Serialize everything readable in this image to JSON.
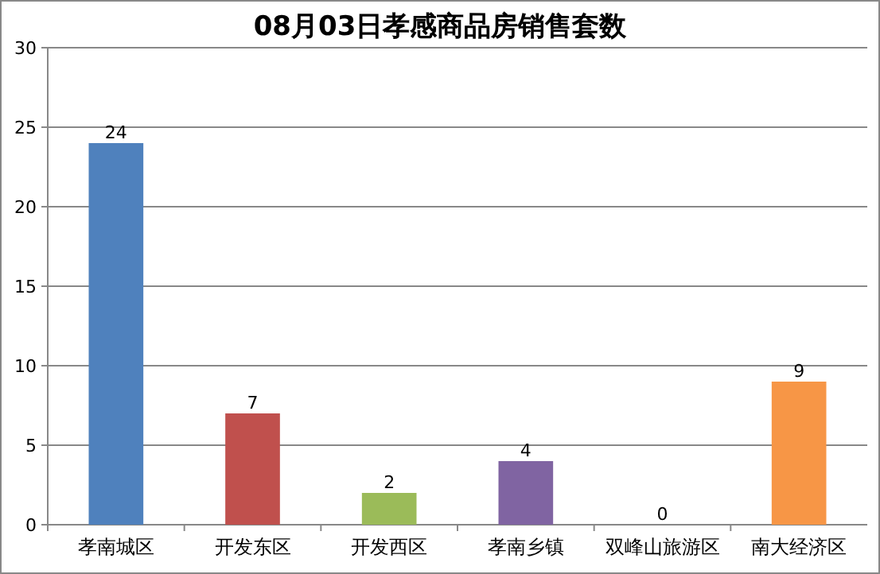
{
  "chart_data": {
    "type": "bar",
    "title": "08月03日孝感商品房销售套数",
    "categories": [
      "孝南城区",
      "开发东区",
      "开发西区",
      "孝南乡镇",
      "双峰山旅游区",
      "南大经济区"
    ],
    "values": [
      24,
      7,
      2,
      4,
      0,
      9
    ],
    "colors": [
      "#4f81bd",
      "#c0504d",
      "#9bbb59",
      "#8064a2",
      "#4bacc6",
      "#f79646"
    ],
    "ylim": [
      0,
      30
    ],
    "yticks": [
      0,
      5,
      10,
      15,
      20,
      25,
      30
    ],
    "grid": "y",
    "data_labels": true
  }
}
